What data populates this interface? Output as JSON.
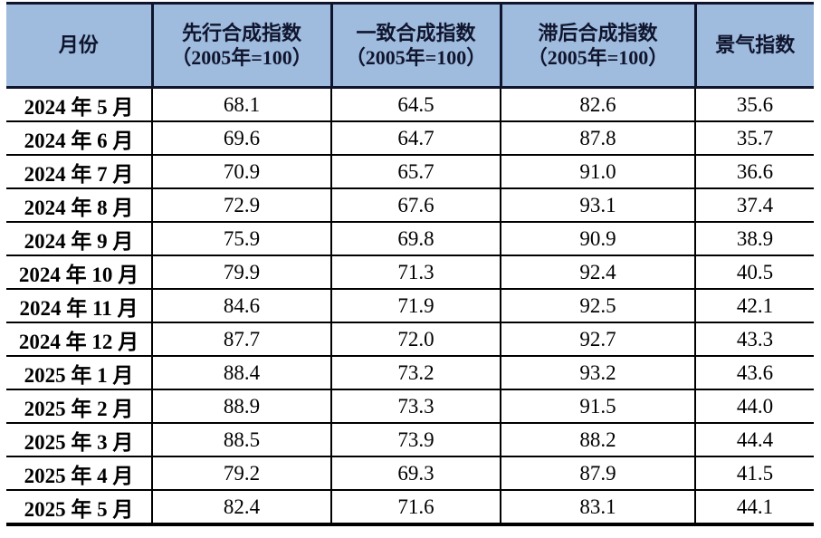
{
  "table": {
    "columns": [
      {
        "label": "月份",
        "sublabel": ""
      },
      {
        "label": "先行合成指数",
        "sublabel": "（2005年=100）"
      },
      {
        "label": "一致合成指数",
        "sublabel": "（2005年=100）"
      },
      {
        "label": "滞后合成指数",
        "sublabel": "（2005年=100）"
      },
      {
        "label": "景气指数",
        "sublabel": ""
      }
    ],
    "rows": [
      {
        "month": "2024 年 5 月",
        "values": [
          "68.1",
          "64.5",
          "82.6",
          "35.6"
        ]
      },
      {
        "month": "2024 年 6 月",
        "values": [
          "69.6",
          "64.7",
          "87.8",
          "35.7"
        ]
      },
      {
        "month": "2024 年 7 月",
        "values": [
          "70.9",
          "65.7",
          "91.0",
          "36.6"
        ]
      },
      {
        "month": "2024 年 8 月",
        "values": [
          "72.9",
          "67.6",
          "93.1",
          "37.4"
        ]
      },
      {
        "month": "2024 年 9 月",
        "values": [
          "75.9",
          "69.8",
          "90.9",
          "38.9"
        ]
      },
      {
        "month": "2024 年 10 月",
        "values": [
          "79.9",
          "71.3",
          "92.4",
          "40.5"
        ]
      },
      {
        "month": "2024 年 11 月",
        "values": [
          "84.6",
          "71.9",
          "92.5",
          "42.1"
        ]
      },
      {
        "month": "2024 年 12 月",
        "values": [
          "87.7",
          "72.0",
          "92.7",
          "43.3"
        ]
      },
      {
        "month": "2025 年 1 月",
        "values": [
          "88.4",
          "73.2",
          "93.2",
          "43.6"
        ]
      },
      {
        "month": "2025 年 2 月",
        "values": [
          "88.9",
          "73.3",
          "91.5",
          "44.0"
        ]
      },
      {
        "month": "2025 年 3 月",
        "values": [
          "88.5",
          "73.9",
          "88.2",
          "44.4"
        ]
      },
      {
        "month": "2025 年 4 月",
        "values": [
          "79.2",
          "69.3",
          "87.9",
          "41.5"
        ]
      },
      {
        "month": "2025 年 5 月",
        "values": [
          "82.4",
          "71.6",
          "83.1",
          "44.1"
        ]
      }
    ]
  },
  "colors": {
    "header_bg": "#9FBBDD",
    "header_border": "#10152e",
    "body_border": "#000000",
    "body_text": "#000000"
  },
  "chart_data": {
    "type": "table",
    "title": "",
    "categories": [
      "2024年5月",
      "2024年6月",
      "2024年7月",
      "2024年8月",
      "2024年9月",
      "2024年10月",
      "2024年11月",
      "2024年12月",
      "2025年1月",
      "2025年2月",
      "2025年3月",
      "2025年4月",
      "2025年5月"
    ],
    "series": [
      {
        "name": "先行合成指数（2005年=100）",
        "values": [
          68.1,
          69.6,
          70.9,
          72.9,
          75.9,
          79.9,
          84.6,
          87.7,
          88.4,
          88.9,
          88.5,
          79.2,
          82.4
        ]
      },
      {
        "name": "一致合成指数（2005年=100）",
        "values": [
          64.5,
          64.7,
          65.7,
          67.6,
          69.8,
          71.3,
          71.9,
          72.0,
          73.2,
          73.3,
          73.9,
          69.3,
          71.6
        ]
      },
      {
        "name": "滞后合成指数（2005年=100）",
        "values": [
          82.6,
          87.8,
          91.0,
          93.1,
          90.9,
          92.4,
          92.5,
          92.7,
          93.2,
          91.5,
          88.2,
          87.9,
          83.1
        ]
      },
      {
        "name": "景气指数",
        "values": [
          35.6,
          35.7,
          36.6,
          37.4,
          38.9,
          40.5,
          42.1,
          43.3,
          43.6,
          44.0,
          44.4,
          41.5,
          44.1
        ]
      }
    ],
    "xlabel": "月份",
    "ylabel": ""
  }
}
